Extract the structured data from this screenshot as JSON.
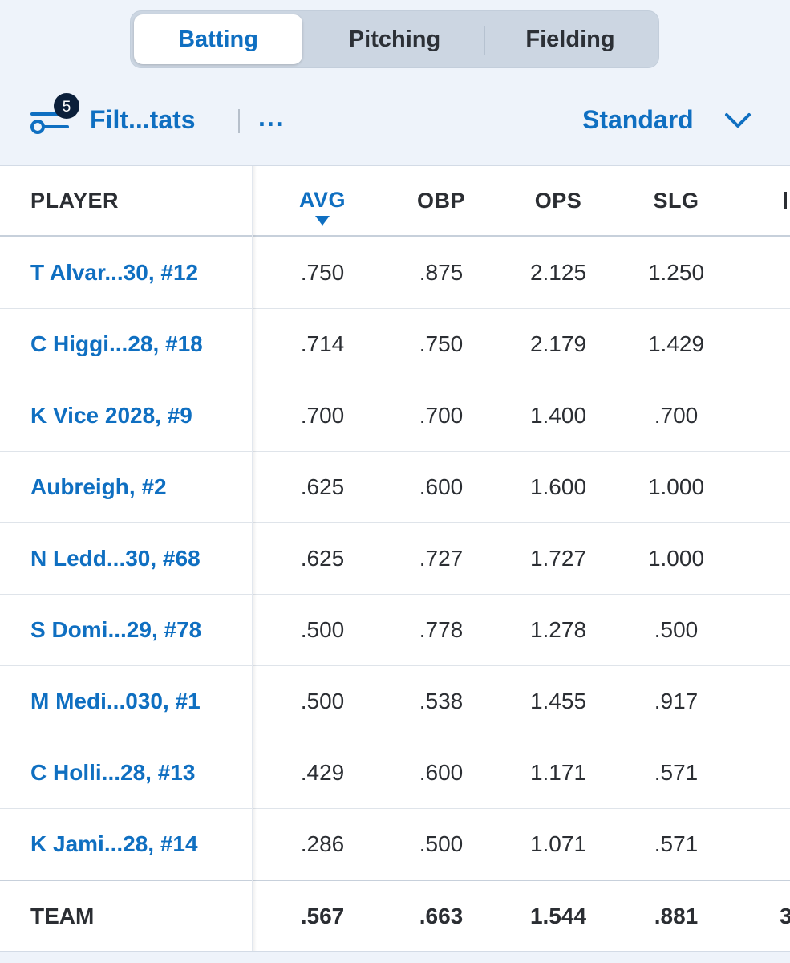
{
  "tabs": [
    {
      "label": "Batting",
      "active": true
    },
    {
      "label": "Pitching",
      "active": false
    },
    {
      "label": "Fielding",
      "active": false
    }
  ],
  "toolbar": {
    "filter_count": "5",
    "filter_label": "Filt...tats",
    "more_label": "...",
    "view_label": "Standard"
  },
  "table": {
    "columns": [
      "PLAYER",
      "AVG",
      "OBP",
      "OPS",
      "SLG"
    ],
    "sorted_column": "AVG",
    "rows": [
      {
        "player": "T Alvar...30, #12",
        "avg": ".750",
        "obp": ".875",
        "ops": "2.125",
        "slg": "1.250"
      },
      {
        "player": "C Higgi...28, #18",
        "avg": ".714",
        "obp": ".750",
        "ops": "2.179",
        "slg": "1.429"
      },
      {
        "player": "K Vice 2028, #9",
        "avg": ".700",
        "obp": ".700",
        "ops": "1.400",
        "slg": ".700"
      },
      {
        "player": "Aubreigh, #2",
        "avg": ".625",
        "obp": ".600",
        "ops": "1.600",
        "slg": "1.000"
      },
      {
        "player": "N Ledd...30, #68",
        "avg": ".625",
        "obp": ".727",
        "ops": "1.727",
        "slg": "1.000"
      },
      {
        "player": "S Domi...29, #78",
        "avg": ".500",
        "obp": ".778",
        "ops": "1.278",
        "slg": ".500"
      },
      {
        "player": "M Medi...030, #1",
        "avg": ".500",
        "obp": ".538",
        "ops": "1.455",
        "slg": ".917"
      },
      {
        "player": "C Holli...28, #13",
        "avg": ".429",
        "obp": ".600",
        "ops": "1.171",
        "slg": ".571"
      },
      {
        "player": "K Jami...28, #14",
        "avg": ".286",
        "obp": ".500",
        "ops": "1.071",
        "slg": ".571"
      }
    ],
    "team": {
      "player": "TEAM",
      "avg": ".567",
      "obp": ".663",
      "ops": "1.544",
      "slg": ".881",
      "next": "3"
    }
  },
  "colors": {
    "accent": "#0f6fc1",
    "text": "#2b2e33",
    "header_bg": "#eef3fa",
    "segment_bg": "#ccd6e2",
    "badge": "#0b1f3a"
  }
}
